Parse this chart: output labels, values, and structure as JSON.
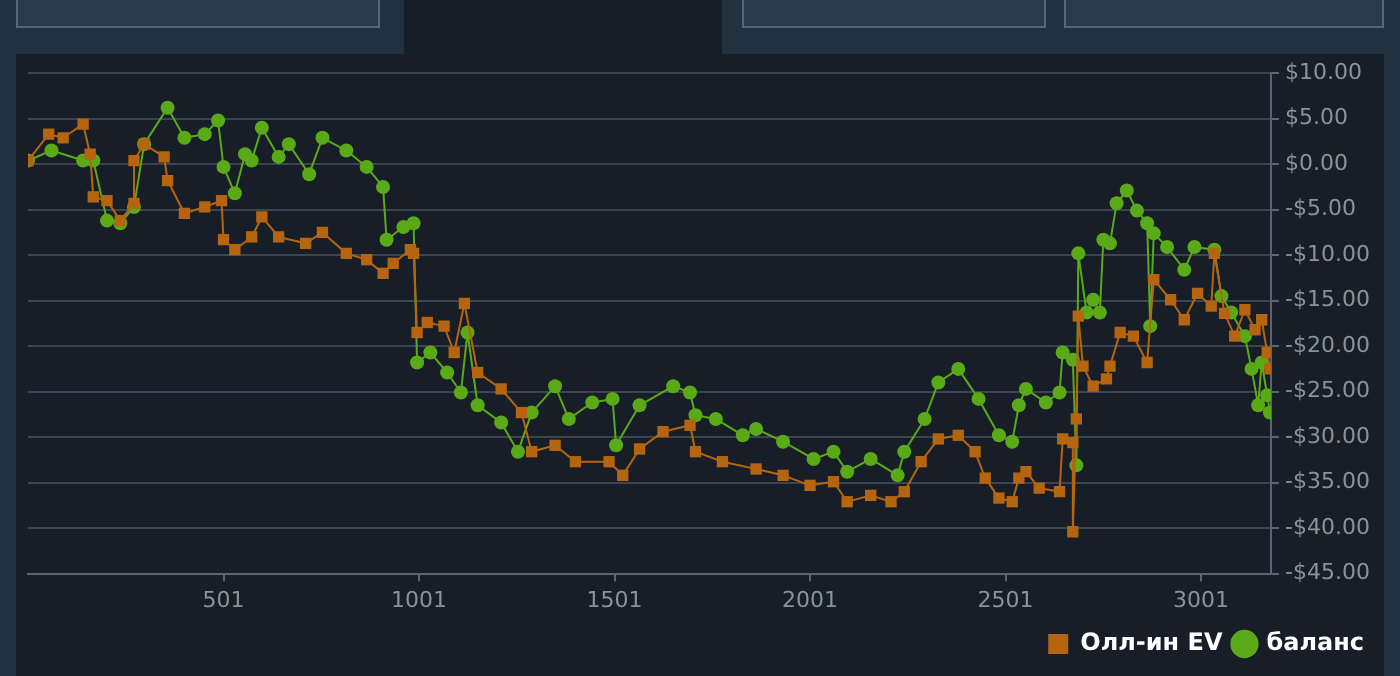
{
  "chart_data": {
    "type": "line",
    "xlim": [
      1,
      3180
    ],
    "xticks": [
      501,
      1001,
      1501,
      2001,
      2501,
      3001
    ],
    "ylim": [
      -45,
      10
    ],
    "yticks": [
      {
        "value": -45,
        "label": "-$45.00"
      },
      {
        "value": -40,
        "label": "-$40.00"
      },
      {
        "value": -35,
        "label": "-$35.00"
      },
      {
        "value": -30,
        "label": "-$30.00"
      },
      {
        "value": -25,
        "label": "-$25.00"
      },
      {
        "value": -20,
        "label": "-$20.00"
      },
      {
        "value": -15,
        "label": "-$15.00"
      },
      {
        "value": -10,
        "label": "-$10.00"
      },
      {
        "value": -5,
        "label": "-$5.00"
      },
      {
        "value": 0,
        "label": "$0.00"
      },
      {
        "value": 5,
        "label": "$5.00"
      },
      {
        "value": 10,
        "label": "$10.00"
      }
    ],
    "grid": "y",
    "legend": "bottom right",
    "series": [
      {
        "name": "Олл-ин EV",
        "color": "#b5650f",
        "marker": "square",
        "x": [
          1,
          54,
          91,
          142,
          160,
          168,
          203,
          237,
          272,
          272,
          298,
          349,
          358,
          401,
          453,
          496,
          501,
          530,
          573,
          599,
          642,
          711,
          754,
          815,
          867,
          909,
          935,
          979,
          987,
          996,
          1022,
          1065,
          1091,
          1117,
          1151,
          1211,
          1263,
          1289,
          1349,
          1401,
          1487,
          1522,
          1565,
          1625,
          1694,
          1708,
          1777,
          1863,
          1932,
          2001,
          2061,
          2096,
          2156,
          2208,
          2242,
          2285,
          2329,
          2380,
          2423,
          2449,
          2484,
          2518,
          2535,
          2553,
          2587,
          2639,
          2647,
          2673,
          2673,
          2682,
          2687,
          2699,
          2725,
          2759,
          2768,
          2794,
          2828,
          2863,
          2880,
          2923,
          2958,
          2992,
          3027,
          3035,
          3061,
          3087,
          3113,
          3139,
          3156,
          3170,
          3177
        ],
        "values": [
          0.4,
          3.3,
          2.9,
          4.4,
          1.1,
          -3.6,
          -4,
          -6.2,
          -4.3,
          0.4,
          2.2,
          0.8,
          -1.8,
          -5.4,
          -4.7,
          -4,
          -8.3,
          -9.4,
          -8,
          -5.8,
          -8,
          -8.7,
          -7.5,
          -9.8,
          -10.5,
          -12,
          -10.9,
          -9.4,
          -9.8,
          -18.5,
          -17.4,
          -17.8,
          -20.7,
          -15.3,
          -22.9,
          -24.7,
          -27.3,
          -31.6,
          -30.9,
          -32.7,
          -32.7,
          -34.2,
          -31.3,
          -29.4,
          -28.7,
          -31.6,
          -32.7,
          -33.5,
          -34.2,
          -35.3,
          -34.9,
          -37.1,
          -36.4,
          -37.1,
          -36,
          -32.7,
          -30.2,
          -29.8,
          -31.6,
          -34.5,
          -36.7,
          -37.1,
          -34.5,
          -33.8,
          -35.6,
          -36,
          -30.2,
          -30.6,
          -40.4,
          -28,
          -16.7,
          -22.2,
          -24.4,
          -23.6,
          -22.2,
          -18.5,
          -18.9,
          -21.8,
          -12.7,
          -14.9,
          -17.1,
          -14.2,
          -15.6,
          -9.8,
          -16.4,
          -18.9,
          -16,
          -18.2,
          -17.1,
          -20.7,
          -22.5
        ]
      },
      {
        "name": "баланс",
        "color": "#5aaa18",
        "marker": "circle",
        "x": [
          1,
          61,
          142,
          168,
          203,
          237,
          272,
          298,
          358,
          401,
          453,
          487,
          501,
          530,
          556,
          573,
          599,
          642,
          668,
          720,
          754,
          815,
          867,
          909,
          918,
          961,
          987,
          996,
          1030,
          1073,
          1108,
          1125,
          1151,
          1211,
          1254,
          1289,
          1349,
          1384,
          1444,
          1496,
          1505,
          1565,
          1651,
          1694,
          1708,
          1760,
          1829,
          1863,
          1932,
          2010,
          2061,
          2096,
          2156,
          2225,
          2242,
          2294,
          2329,
          2380,
          2432,
          2484,
          2518,
          2535,
          2553,
          2604,
          2639,
          2647,
          2673,
          2682,
          2687,
          2708,
          2725,
          2742,
          2751,
          2768,
          2785,
          2811,
          2837,
          2863,
          2871,
          2880,
          2914,
          2958,
          2984,
          3035,
          3053,
          3078,
          3113,
          3130,
          3147,
          3156,
          3170,
          3177
        ],
        "values": [
          0.4,
          1.5,
          0.4,
          0.4,
          -6.2,
          -6.5,
          -4.7,
          2.2,
          6.2,
          2.9,
          3.3,
          4.8,
          -0.3,
          -3.2,
          1.1,
          0.4,
          4,
          0.8,
          2.2,
          -1.1,
          2.9,
          1.5,
          -0.3,
          -2.5,
          -8.3,
          -6.9,
          -6.5,
          -21.8,
          -20.7,
          -22.9,
          -25.1,
          -18.5,
          -26.5,
          -28.4,
          -31.6,
          -27.3,
          -24.4,
          -28,
          -26.2,
          -25.8,
          -30.9,
          -26.5,
          -24.4,
          -25.1,
          -27.6,
          -28,
          -29.8,
          -29.1,
          -30.5,
          -32.4,
          -31.6,
          -33.8,
          -32.4,
          -34.2,
          -31.6,
          -28,
          -24,
          -22.5,
          -25.8,
          -29.8,
          -30.5,
          -26.5,
          -24.7,
          -26.2,
          -25.1,
          -20.7,
          -21.5,
          -33.1,
          -9.8,
          -16.3,
          -14.9,
          -16.3,
          -8.3,
          -8.7,
          -4.3,
          -2.9,
          -5.1,
          -6.5,
          -17.8,
          -7.6,
          -9.1,
          -11.6,
          -9.1,
          -9.4,
          -14.5,
          -16.3,
          -18.9,
          -22.5,
          -26.5,
          -21.8,
          -25.4,
          -27.3
        ]
      }
    ]
  }
}
